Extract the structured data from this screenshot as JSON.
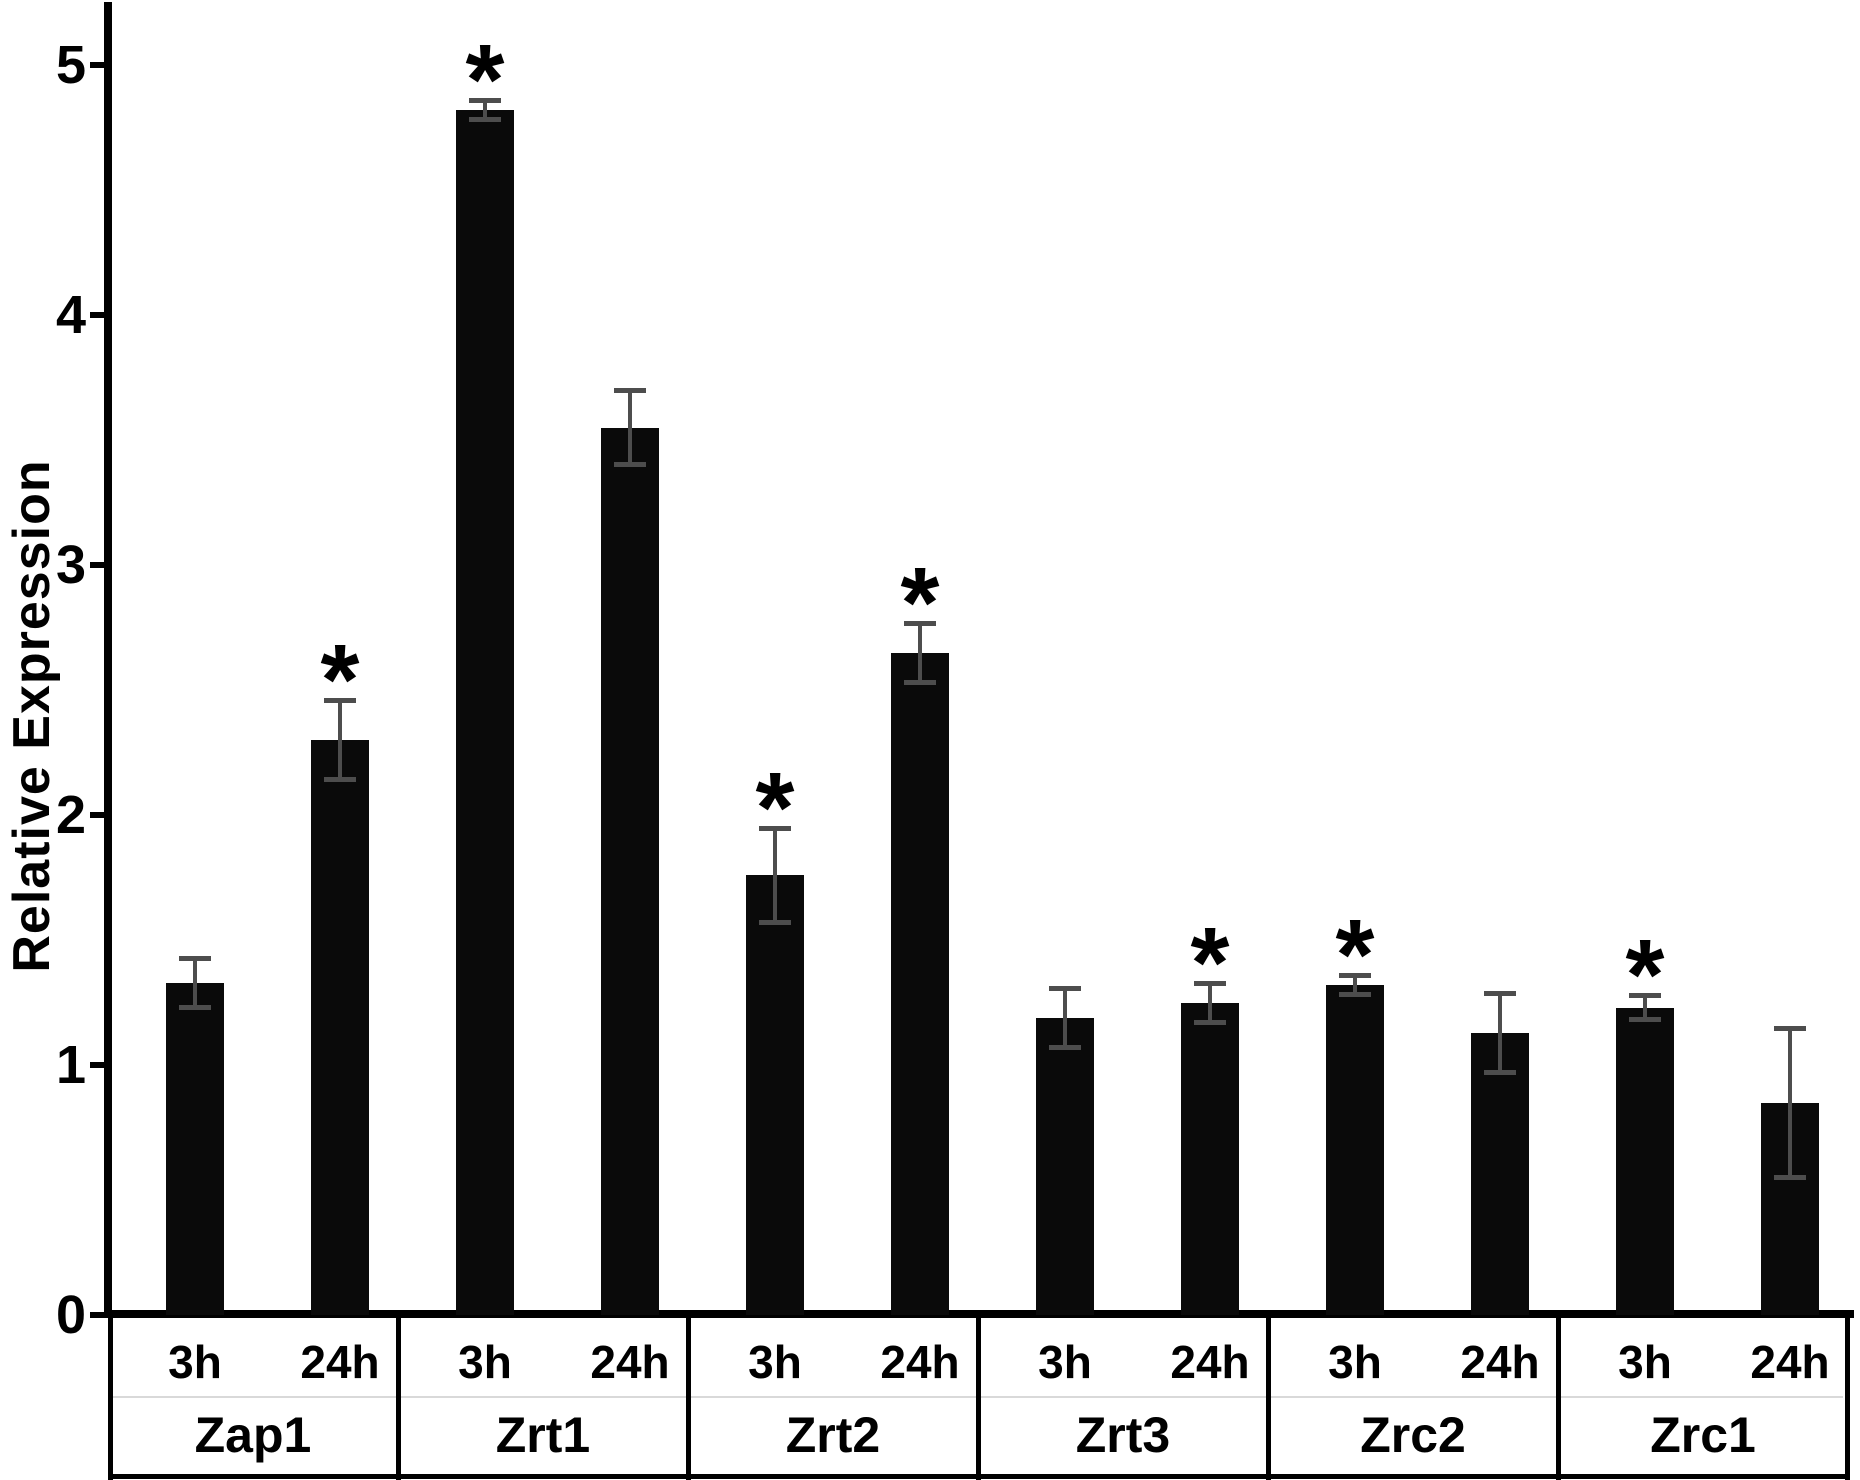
{
  "chart_data": {
    "type": "bar",
    "title": "",
    "ylabel": "Relative Expression",
    "xlabel": "",
    "ylim": [
      0,
      5
    ],
    "yticks": [
      0,
      1,
      2,
      3,
      4,
      5
    ],
    "grid": false,
    "legend_position": "none",
    "bar_color": "#0a0a0a",
    "error_bar_color": "#4d4d4d",
    "significance_marker": "*",
    "groups": [
      "Zap1",
      "Zrt1",
      "Zrt2",
      "Zrt3",
      "Zrc2",
      "Zrc1"
    ],
    "times": [
      "3h",
      "24h"
    ],
    "series": [
      {
        "group": "Zap1",
        "time": "3h",
        "value": 1.33,
        "error": 0.1,
        "significant": false
      },
      {
        "group": "Zap1",
        "time": "24h",
        "value": 2.3,
        "error": 0.16,
        "significant": true
      },
      {
        "group": "Zrt1",
        "time": "3h",
        "value": 4.82,
        "error": 0.04,
        "significant": true
      },
      {
        "group": "Zrt1",
        "time": "24h",
        "value": 3.55,
        "error": 0.15,
        "significant": false
      },
      {
        "group": "Zrt2",
        "time": "3h",
        "value": 1.76,
        "error": 0.19,
        "significant": true
      },
      {
        "group": "Zrt2",
        "time": "24h",
        "value": 2.65,
        "error": 0.12,
        "significant": true
      },
      {
        "group": "Zrt3",
        "time": "3h",
        "value": 1.19,
        "error": 0.12,
        "significant": false
      },
      {
        "group": "Zrt3",
        "time": "24h",
        "value": 1.25,
        "error": 0.08,
        "significant": true
      },
      {
        "group": "Zrc2",
        "time": "3h",
        "value": 1.32,
        "error": 0.04,
        "significant": true
      },
      {
        "group": "Zrc2",
        "time": "24h",
        "value": 1.13,
        "error": 0.16,
        "significant": false
      },
      {
        "group": "Zrc1",
        "time": "3h",
        "value": 1.23,
        "error": 0.05,
        "significant": true
      },
      {
        "group": "Zrc1",
        "time": "24h",
        "value": 0.85,
        "error": 0.3,
        "significant": false
      }
    ]
  }
}
